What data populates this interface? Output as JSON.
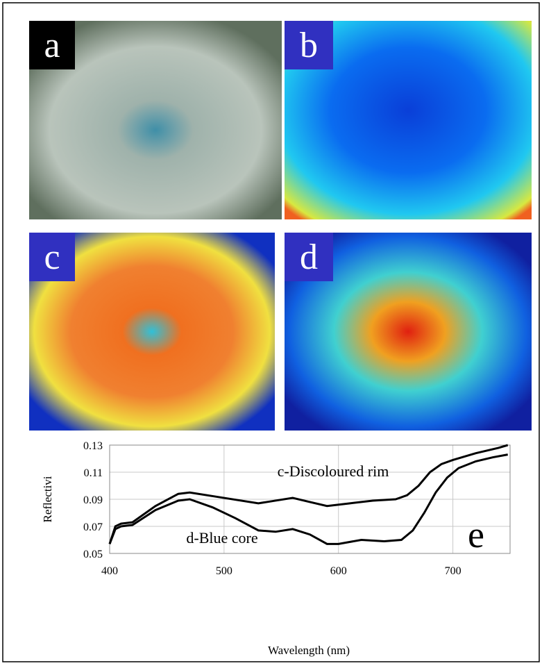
{
  "panels": [
    {
      "label": "a"
    },
    {
      "label": "b"
    },
    {
      "label": "c"
    },
    {
      "label": "d"
    }
  ],
  "chart_data": {
    "type": "line",
    "panel_label": "e",
    "xlabel": "Wavelength (nm)",
    "ylabel": "Reflectivi",
    "xlim": [
      400,
      750
    ],
    "xticks": [
      400,
      500,
      600,
      700
    ],
    "ylim": [
      0.05,
      0.13
    ],
    "yticks": [
      0.05,
      0.07,
      0.09,
      0.11,
      0.13
    ],
    "grid": true,
    "annotations": [
      "c-Discoloured rim",
      "d-Blue core"
    ],
    "series": [
      {
        "color": "#000000",
        "x": [
          400,
          405,
          410,
          420,
          440,
          460,
          470,
          500,
          530,
          545,
          560,
          575,
          590,
          610,
          630,
          650,
          660,
          670,
          680,
          690,
          700,
          720,
          740,
          748
        ],
        "values": [
          0.057,
          0.07,
          0.072,
          0.073,
          0.085,
          0.094,
          0.095,
          0.091,
          0.087,
          0.089,
          0.091,
          0.088,
          0.085,
          0.087,
          0.089,
          0.09,
          0.093,
          0.1,
          0.11,
          0.116,
          0.119,
          0.124,
          0.128,
          0.13
        ]
      },
      {
        "color": "#000000",
        "x": [
          400,
          405,
          410,
          420,
          440,
          460,
          470,
          490,
          510,
          530,
          545,
          560,
          575,
          590,
          600,
          620,
          640,
          655,
          665,
          675,
          685,
          695,
          705,
          720,
          735,
          748
        ],
        "values": [
          0.057,
          0.068,
          0.07,
          0.071,
          0.082,
          0.089,
          0.09,
          0.084,
          0.076,
          0.067,
          0.066,
          0.068,
          0.064,
          0.057,
          0.057,
          0.06,
          0.059,
          0.06,
          0.067,
          0.08,
          0.095,
          0.106,
          0.113,
          0.118,
          0.121,
          0.123
        ]
      }
    ]
  }
}
